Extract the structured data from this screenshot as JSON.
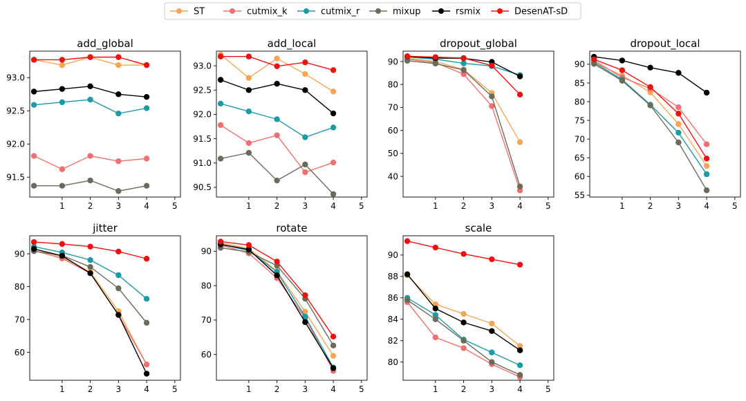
{
  "chart_data": {
    "type": "line",
    "legend": {
      "placement": "top-center",
      "entries": [
        {
          "name": "ST",
          "color": "#F5A654"
        },
        {
          "name": "cutmix_k",
          "color": "#EE7070"
        },
        {
          "name": "cutmix_r",
          "color": "#1C9AA6"
        },
        {
          "name": "mixup",
          "color": "#6B6B5B"
        },
        {
          "name": "rsmix",
          "color": "#000000"
        },
        {
          "name": "DesenAT-sD",
          "color": "#EE1111"
        }
      ]
    },
    "panels": [
      {
        "title": "add_global",
        "x": [
          0,
          1,
          2,
          3,
          4
        ],
        "xticks": [
          1,
          2,
          3,
          4,
          5
        ],
        "xlim": [
          -0.15,
          5.2
        ],
        "ylim": [
          91.2,
          93.4
        ],
        "yticks": [
          91.5,
          92.0,
          92.5,
          93.0
        ],
        "ytick_labels": [
          "91.5",
          "92.0",
          "92.5",
          "93.0"
        ],
        "series": [
          {
            "name": "ST",
            "values": [
              93.27,
              93.19,
              93.31,
              93.19,
              93.19
            ]
          },
          {
            "name": "cutmix_k",
            "values": [
              91.82,
              91.62,
              91.82,
              91.74,
              91.78
            ]
          },
          {
            "name": "cutmix_r",
            "values": [
              92.59,
              92.63,
              92.67,
              92.46,
              92.54
            ]
          },
          {
            "name": "mixup",
            "values": [
              91.37,
              91.37,
              91.45,
              91.29,
              91.37
            ]
          },
          {
            "name": "rsmix",
            "values": [
              92.79,
              92.83,
              92.87,
              92.75,
              92.71
            ]
          },
          {
            "name": "DesenAT-sD",
            "values": [
              93.27,
              93.27,
              93.31,
              93.31,
              93.19
            ]
          }
        ]
      },
      {
        "title": "add_local",
        "x": [
          0,
          1,
          2,
          3,
          4
        ],
        "xticks": [
          1,
          2,
          3,
          4,
          5
        ],
        "xlim": [
          -0.15,
          5.2
        ],
        "ylim": [
          90.3,
          93.3
        ],
        "yticks": [
          90.5,
          91.0,
          91.5,
          92.0,
          92.5,
          93.0
        ],
        "ytick_labels": [
          "90.5",
          "91.0",
          "91.5",
          "92.0",
          "92.5",
          "93.0"
        ],
        "series": [
          {
            "name": "ST",
            "values": [
              93.23,
              92.75,
              93.15,
              92.83,
              92.47
            ]
          },
          {
            "name": "cutmix_k",
            "values": [
              91.78,
              91.41,
              91.57,
              90.81,
              91.01
            ]
          },
          {
            "name": "cutmix_r",
            "values": [
              92.22,
              92.06,
              91.9,
              91.53,
              91.73
            ]
          },
          {
            "name": "mixup",
            "values": [
              91.09,
              91.21,
              90.64,
              90.97,
              90.36
            ]
          },
          {
            "name": "rsmix",
            "values": [
              92.71,
              92.5,
              92.63,
              92.5,
              92.02
            ]
          },
          {
            "name": "DesenAT-sD",
            "values": [
              93.19,
              93.19,
              92.99,
              93.07,
              92.91
            ]
          }
        ]
      },
      {
        "title": "dropout_global",
        "x": [
          0,
          1,
          2,
          3,
          4
        ],
        "xticks": [
          1,
          2,
          3,
          4,
          5
        ],
        "xlim": [
          -0.15,
          5.2
        ],
        "ylim": [
          31.0,
          94.5
        ],
        "yticks": [
          40,
          50,
          60,
          70,
          80,
          90
        ],
        "ytick_labels": [
          "40",
          "50",
          "60",
          "70",
          "80",
          "90"
        ],
        "series": [
          {
            "name": "ST",
            "values": [
              91.5,
              90.0,
              86.5,
              76.3,
              54.9
            ]
          },
          {
            "name": "cutmix_k",
            "values": [
              91.0,
              89.5,
              84.5,
              70.6,
              33.9
            ]
          },
          {
            "name": "cutmix_r",
            "values": [
              92.0,
              91.0,
              89.2,
              88.0,
              84.1
            ]
          },
          {
            "name": "mixup",
            "values": [
              90.3,
              89.1,
              86.3,
              74.8,
              35.6
            ]
          },
          {
            "name": "rsmix",
            "values": [
              92.2,
              91.5,
              91.4,
              89.8,
              83.5
            ]
          },
          {
            "name": "DesenAT-sD",
            "values": [
              92.3,
              91.9,
              91.5,
              88.2,
              75.6
            ]
          }
        ]
      },
      {
        "title": "dropout_local",
        "x": [
          0,
          1,
          2,
          3,
          4
        ],
        "xticks": [
          1,
          2,
          3,
          4,
          5
        ],
        "xlim": [
          -0.15,
          5.2
        ],
        "ylim": [
          54.5,
          93.5
        ],
        "yticks": [
          55,
          60,
          65,
          70,
          75,
          80,
          85,
          90
        ],
        "ytick_labels": [
          "55",
          "60",
          "65",
          "70",
          "75",
          "80",
          "85",
          "90"
        ],
        "series": [
          {
            "name": "ST",
            "values": [
              90.5,
              87.0,
              82.5,
              74.0,
              62.8
            ]
          },
          {
            "name": "cutmix_k",
            "values": [
              91.0,
              86.5,
              83.5,
              78.5,
              68.6
            ]
          },
          {
            "name": "cutmix_r",
            "values": [
              90.5,
              85.9,
              79.2,
              71.7,
              60.6
            ]
          },
          {
            "name": "mixup",
            "values": [
              90.1,
              85.6,
              79.0,
              69.1,
              56.3
            ]
          },
          {
            "name": "rsmix",
            "values": [
              92.0,
              91.0,
              89.1,
              87.7,
              82.4
            ]
          },
          {
            "name": "DesenAT-sD",
            "values": [
              91.3,
              88.4,
              83.9,
              76.8,
              64.8
            ]
          }
        ]
      },
      {
        "title": "jitter",
        "x": [
          0,
          1,
          2,
          3,
          4
        ],
        "xticks": [
          1,
          2,
          3,
          4,
          5
        ],
        "xlim": [
          -0.15,
          5.2
        ],
        "ylim": [
          51.5,
          95.5
        ],
        "yticks": [
          60,
          70,
          80,
          90
        ],
        "ytick_labels": [
          "60",
          "70",
          "80",
          "90"
        ],
        "series": [
          {
            "name": "ST",
            "values": [
              91.5,
              89.0,
              84.5,
              72.5,
              56.3
            ]
          },
          {
            "name": "cutmix_k",
            "values": [
              91.0,
              88.6,
              84.1,
              71.4,
              56.3
            ]
          },
          {
            "name": "cutmix_r",
            "values": [
              92.2,
              90.4,
              88.1,
              83.5,
              76.3
            ]
          },
          {
            "name": "mixup",
            "values": [
              90.8,
              89.5,
              86.0,
              79.5,
              69.0
            ]
          },
          {
            "name": "rsmix",
            "values": [
              91.5,
              89.4,
              84.1,
              71.4,
              53.5
            ]
          },
          {
            "name": "DesenAT-sD",
            "values": [
              93.6,
              93.0,
              92.2,
              90.7,
              88.5
            ]
          }
        ]
      },
      {
        "title": "rotate",
        "x": [
          0,
          1,
          2,
          3,
          4
        ],
        "xticks": [
          1,
          2,
          3,
          4,
          5
        ],
        "xlim": [
          -0.15,
          5.2
        ],
        "ylim": [
          52.5,
          94.5
        ],
        "yticks": [
          60,
          70,
          80,
          90
        ],
        "ytick_labels": [
          "60",
          "70",
          "80",
          "90"
        ],
        "series": [
          {
            "name": "ST",
            "values": [
              92.4,
              90.8,
              84.2,
              72.4,
              59.6
            ]
          },
          {
            "name": "cutmix_k",
            "values": [
              91.8,
              89.4,
              82.2,
              70.6,
              55.2
            ]
          },
          {
            "name": "cutmix_r",
            "values": [
              92.0,
              90.2,
              84.0,
              71.0,
              56.2
            ]
          },
          {
            "name": "mixup",
            "values": [
              91.0,
              89.8,
              85.8,
              76.2,
              62.6
            ]
          },
          {
            "name": "rsmix",
            "values": [
              92.0,
              90.5,
              83.0,
              69.4,
              56.0
            ]
          },
          {
            "name": "DesenAT-sD",
            "values": [
              92.8,
              91.8,
              87.0,
              77.2,
              65.2
            ]
          }
        ]
      },
      {
        "title": "scale",
        "x": [
          0,
          1,
          2,
          3,
          4
        ],
        "xticks": [
          1,
          2,
          3,
          4,
          5
        ],
        "xlim": [
          -0.15,
          5.2
        ],
        "ylim": [
          78.3,
          91.8
        ],
        "yticks": [
          80,
          82,
          84,
          86,
          88,
          90
        ],
        "ytick_labels": [
          "80",
          "82",
          "84",
          "86",
          "88",
          "90"
        ],
        "series": [
          {
            "name": "ST",
            "values": [
              88.1,
              85.4,
              84.5,
              83.6,
              81.5
            ]
          },
          {
            "name": "cutmix_k",
            "values": [
              85.6,
              82.3,
              81.3,
              79.8,
              78.6
            ]
          },
          {
            "name": "cutmix_r",
            "values": [
              86.0,
              84.4,
              82.1,
              80.9,
              79.7
            ]
          },
          {
            "name": "mixup",
            "values": [
              85.8,
              84.0,
              82.0,
              80.0,
              78.8
            ]
          },
          {
            "name": "rsmix",
            "values": [
              88.2,
              85.0,
              83.7,
              82.9,
              81.1
            ]
          },
          {
            "name": "DesenAT-sD",
            "values": [
              91.3,
              90.7,
              90.1,
              89.6,
              89.1
            ]
          }
        ]
      }
    ]
  }
}
